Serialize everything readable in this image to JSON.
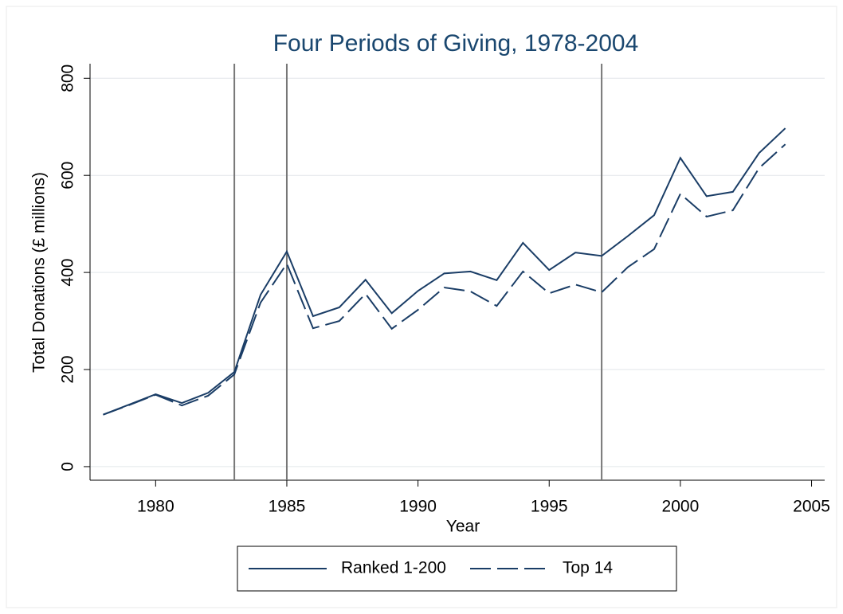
{
  "chart_data": {
    "type": "line",
    "title": "Four Periods of Giving, 1978-2004",
    "x_label": "Year",
    "y_label": "Total Donations (£ millions)",
    "x": [
      1978,
      1979,
      1980,
      1981,
      1982,
      1983,
      1984,
      1985,
      1986,
      1987,
      1988,
      1989,
      1990,
      1991,
      1992,
      1993,
      1994,
      1995,
      1996,
      1997,
      1998,
      1999,
      2000,
      2001,
      2002,
      2003,
      2004
    ],
    "series": [
      {
        "name": "Ranked 1-200",
        "color": "#1a3d66",
        "line_style": "solid",
        "values": [
          107,
          128,
          149,
          131,
          152,
          195,
          354,
          443,
          310,
          328,
          385,
          316,
          362,
          398,
          402,
          384,
          461,
          405,
          441,
          434,
          475,
          518,
          636,
          557,
          566,
          646,
          697
        ]
      },
      {
        "name": "Top 14",
        "color": "#1a3d66",
        "line_style": "dashed",
        "values": [
          107,
          127,
          148,
          126,
          146,
          190,
          338,
          418,
          285,
          300,
          356,
          284,
          323,
          369,
          361,
          331,
          402,
          357,
          375,
          359,
          411,
          448,
          562,
          515,
          528,
          615,
          664
        ]
      }
    ],
    "vlines": [
      1983,
      1985,
      1997
    ],
    "vline_color": "#777777",
    "xlim": [
      1977.5,
      2005.5
    ],
    "xticks": [
      1980,
      1985,
      1990,
      1995,
      2000,
      2005
    ],
    "ylim": [
      -28,
      830
    ],
    "yticks": [
      0,
      200,
      400,
      600,
      800
    ],
    "grid": true,
    "legend": "bottom"
  }
}
